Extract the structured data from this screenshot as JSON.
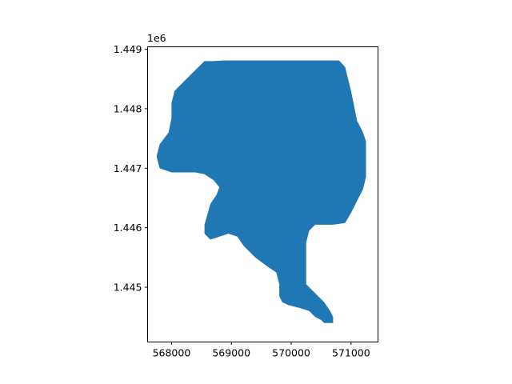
{
  "chart_data": {
    "type": "area",
    "title": "",
    "xlabel": "",
    "ylabel": "",
    "xlim": [
      567600,
      571450
    ],
    "ylim": [
      1444080,
      1449040
    ],
    "y_offset_text": "1e6",
    "fill_color": "#1f77b4",
    "x_ticks": [
      {
        "value": 568000,
        "label": "568000"
      },
      {
        "value": 569000,
        "label": "569000"
      },
      {
        "value": 570000,
        "label": "570000"
      },
      {
        "value": 571000,
        "label": "571000"
      }
    ],
    "y_ticks": [
      {
        "value": 1445000,
        "label": "1.445"
      },
      {
        "value": 1446000,
        "label": "1.446"
      },
      {
        "value": 1447000,
        "label": "1.447"
      },
      {
        "value": 1448000,
        "label": "1.448"
      },
      {
        "value": 1449000,
        "label": "1.449"
      }
    ],
    "polygon": [
      [
        568700,
        1448800
      ],
      [
        568850,
        1448810
      ],
      [
        570800,
        1448810
      ],
      [
        570900,
        1448700
      ],
      [
        570950,
        1448500
      ],
      [
        571000,
        1448300
      ],
      [
        571050,
        1448050
      ],
      [
        571100,
        1447800
      ],
      [
        571200,
        1447600
      ],
      [
        571250,
        1447450
      ],
      [
        571250,
        1446850
      ],
      [
        571200,
        1446650
      ],
      [
        571100,
        1446450
      ],
      [
        571000,
        1446250
      ],
      [
        570900,
        1446080
      ],
      [
        570700,
        1446050
      ],
      [
        570400,
        1446050
      ],
      [
        570300,
        1445950
      ],
      [
        570250,
        1445750
      ],
      [
        570250,
        1445050
      ],
      [
        570350,
        1444950
      ],
      [
        570450,
        1444850
      ],
      [
        570550,
        1444750
      ],
      [
        570650,
        1444600
      ],
      [
        570700,
        1444500
      ],
      [
        570700,
        1444400
      ],
      [
        570550,
        1444400
      ],
      [
        570500,
        1444450
      ],
      [
        570400,
        1444500
      ],
      [
        570300,
        1444600
      ],
      [
        570150,
        1444650
      ],
      [
        569950,
        1444700
      ],
      [
        569850,
        1444750
      ],
      [
        569800,
        1444850
      ],
      [
        569800,
        1445050
      ],
      [
        569750,
        1445250
      ],
      [
        569600,
        1445350
      ],
      [
        569400,
        1445500
      ],
      [
        569200,
        1445700
      ],
      [
        569100,
        1445850
      ],
      [
        568950,
        1445900
      ],
      [
        568800,
        1445850
      ],
      [
        568650,
        1445800
      ],
      [
        568550,
        1445900
      ],
      [
        568550,
        1446050
      ],
      [
        568650,
        1446400
      ],
      [
        568750,
        1446550
      ],
      [
        568800,
        1446680
      ],
      [
        568700,
        1446800
      ],
      [
        568550,
        1446900
      ],
      [
        568400,
        1446930
      ],
      [
        568000,
        1446930
      ],
      [
        567800,
        1447000
      ],
      [
        567750,
        1447200
      ],
      [
        567800,
        1447400
      ],
      [
        567950,
        1447600
      ],
      [
        568000,
        1447850
      ],
      [
        568000,
        1448100
      ],
      [
        568050,
        1448300
      ],
      [
        568200,
        1448450
      ],
      [
        568400,
        1448650
      ],
      [
        568550,
        1448800
      ]
    ]
  }
}
